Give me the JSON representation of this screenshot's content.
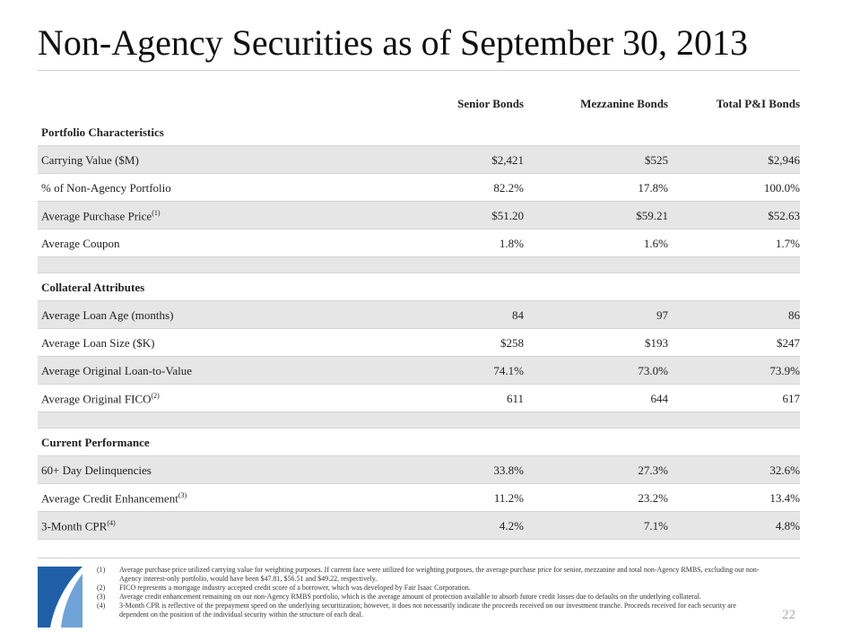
{
  "title": "Non-Agency Securities as of September 30, 2013",
  "table": {
    "columns": [
      "Senior Bonds",
      "Mezzanine Bonds",
      "Total P&I Bonds"
    ],
    "sections": [
      {
        "title": "Portfolio Characteristics",
        "rows": [
          {
            "label": "Carrying Value ($M)",
            "values": [
              "$2,421",
              "$525",
              "$2,946"
            ]
          },
          {
            "label": "% of Non-Agency Portfolio",
            "values": [
              "82.2%",
              "17.8%",
              "100.0%"
            ]
          },
          {
            "label": "Average Purchase Price",
            "note": "(1)",
            "values": [
              "$51.20",
              "$59.21",
              "$52.63"
            ]
          },
          {
            "label": "Average Coupon",
            "values": [
              "1.8%",
              "1.6%",
              "1.7%"
            ]
          }
        ]
      },
      {
        "title": "Collateral Attributes",
        "rows": [
          {
            "label": "Average Loan Age (months)",
            "values": [
              "84",
              "97",
              "86"
            ]
          },
          {
            "label": "Average Loan Size ($K)",
            "values": [
              "$258",
              "$193",
              "$247"
            ]
          },
          {
            "label": "Average Original Loan-to-Value",
            "values": [
              "74.1%",
              "73.0%",
              "73.9%"
            ]
          },
          {
            "label": "Average Original FICO",
            "note": "(2)",
            "values": [
              "611",
              "644",
              "617"
            ]
          }
        ]
      },
      {
        "title": "Current Performance",
        "rows": [
          {
            "label": "60+ Day Delinquencies",
            "values": [
              "33.8%",
              "27.3%",
              "32.6%"
            ]
          },
          {
            "label": "Average Credit Enhancement",
            "note": "(3)",
            "values": [
              "11.2%",
              "23.2%",
              "13.4%"
            ]
          },
          {
            "label": "3-Month CPR",
            "note": "(4)",
            "values": [
              "4.2%",
              "7.1%",
              "4.8%"
            ]
          }
        ]
      }
    ]
  },
  "footnotes": [
    {
      "marker": "(1)",
      "text": "Average purchase price utilized carrying value for weighting purposes. If current face were utilized for weighting purposes, the average purchase price for senior, mezzanine and total non-Agency RMBS, excluding our non-Agency interest-only portfolio, would have been $47.81, $56.51 and $49.22, respectively."
    },
    {
      "marker": "(2)",
      "text": "FICO represents a mortgage industry accepted credit score of a borrower, which was developed by Fair Isaac Corporation."
    },
    {
      "marker": "(3)",
      "text": "Average credit enhancement remaining on our non-Agency RMBS portfolio, which is the average amount of protection available to absorb future credit losses due to defaults on the underlying collateral."
    },
    {
      "marker": "(4)",
      "text": "3-Month CPR is reflective of the prepayment speed on the underlying securitization; however, it does not necessarily indicate the proceeds received on our investment tranche. Proceeds received for each security are dependent on the position of the individual security within the structure of each deal."
    }
  ],
  "page_number": "22"
}
